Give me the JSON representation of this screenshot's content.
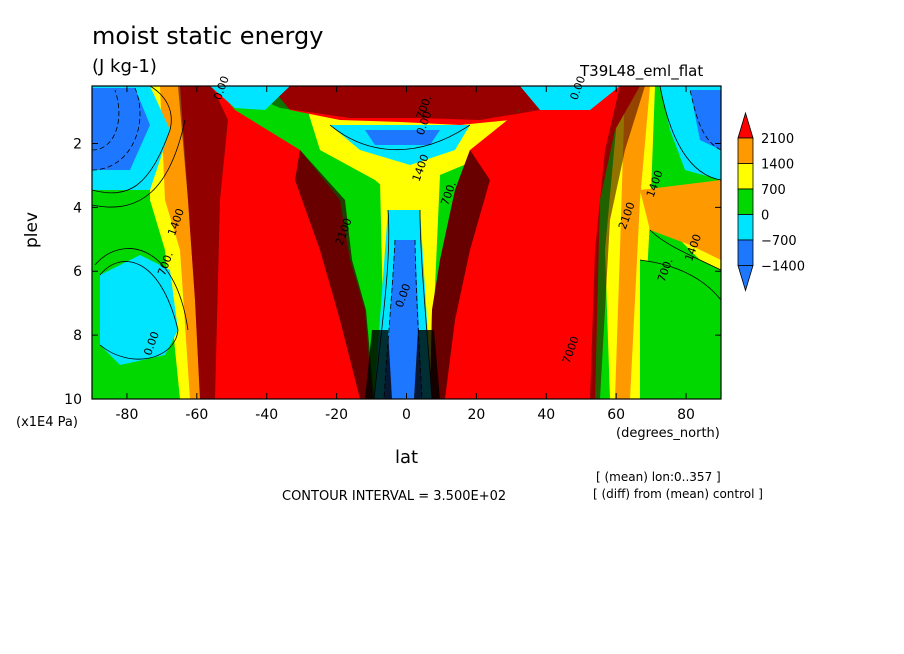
{
  "chart_data": {
    "type": "heatmap",
    "title": "moist static energy",
    "units": "(J kg-1)",
    "experiment": "T39L48_eml_flat",
    "xlabel": "lat",
    "xunits": "(degrees_north)",
    "ylabel": "plev",
    "yunits": "(x1E4 Pa)",
    "xlim": [
      -90,
      90
    ],
    "ylim": [
      0.2,
      10
    ],
    "y_inverted": true,
    "x_ticks": [
      -80,
      -60,
      -40,
      -20,
      0,
      20,
      40,
      60,
      80
    ],
    "y_ticks": [
      2,
      4,
      6,
      8,
      10
    ],
    "colorbar": {
      "levels": [
        -1400,
        -700,
        0,
        700,
        1400,
        2100
      ],
      "colors": [
        "#1e78ff",
        "#00e5ff",
        "#00d800",
        "#ffff00",
        "#ff9900",
        "#ff0000"
      ],
      "extend": "both"
    },
    "contour_labels": [
      {
        "text": "0.00",
        "lat": -72,
        "plev": 8.3
      },
      {
        "text": "700.",
        "lat": -68,
        "plev": 5.8
      },
      {
        "text": "1400",
        "lat": -65,
        "plev": 4.5
      },
      {
        "text": "1400",
        "lat": 5,
        "plev": 2.8
      },
      {
        "text": "700.",
        "lat": 13,
        "plev": 3.6
      },
      {
        "text": "2100",
        "lat": -17,
        "plev": 4.8
      },
      {
        "text": "0.00",
        "lat": 0,
        "plev": 6.8
      },
      {
        "text": "0.00",
        "lat": 6,
        "plev": 1.4
      },
      {
        "text": "700.",
        "lat": 6,
        "plev": 0.9
      },
      {
        "text": "0.00",
        "lat": -52,
        "plev": 0.3
      },
      {
        "text": "0.00",
        "lat": 50,
        "plev": 0.3
      },
      {
        "text": "1400",
        "lat": 72,
        "plev": 3.3
      },
      {
        "text": "2100",
        "lat": 64,
        "plev": 4.3
      },
      {
        "text": "1400",
        "lat": 83,
        "plev": 5.3
      },
      {
        "text": "700.",
        "lat": 75,
        "plev": 6.0
      },
      {
        "text": "7000",
        "lat": 48,
        "plev": 8.5
      }
    ],
    "notes": [
      "[ (mean) lon:0..357 ]",
      "[ (diff) from (mean) control ]"
    ],
    "contour_interval": "CONTOUR INTERVAL = 3.500E+02"
  }
}
